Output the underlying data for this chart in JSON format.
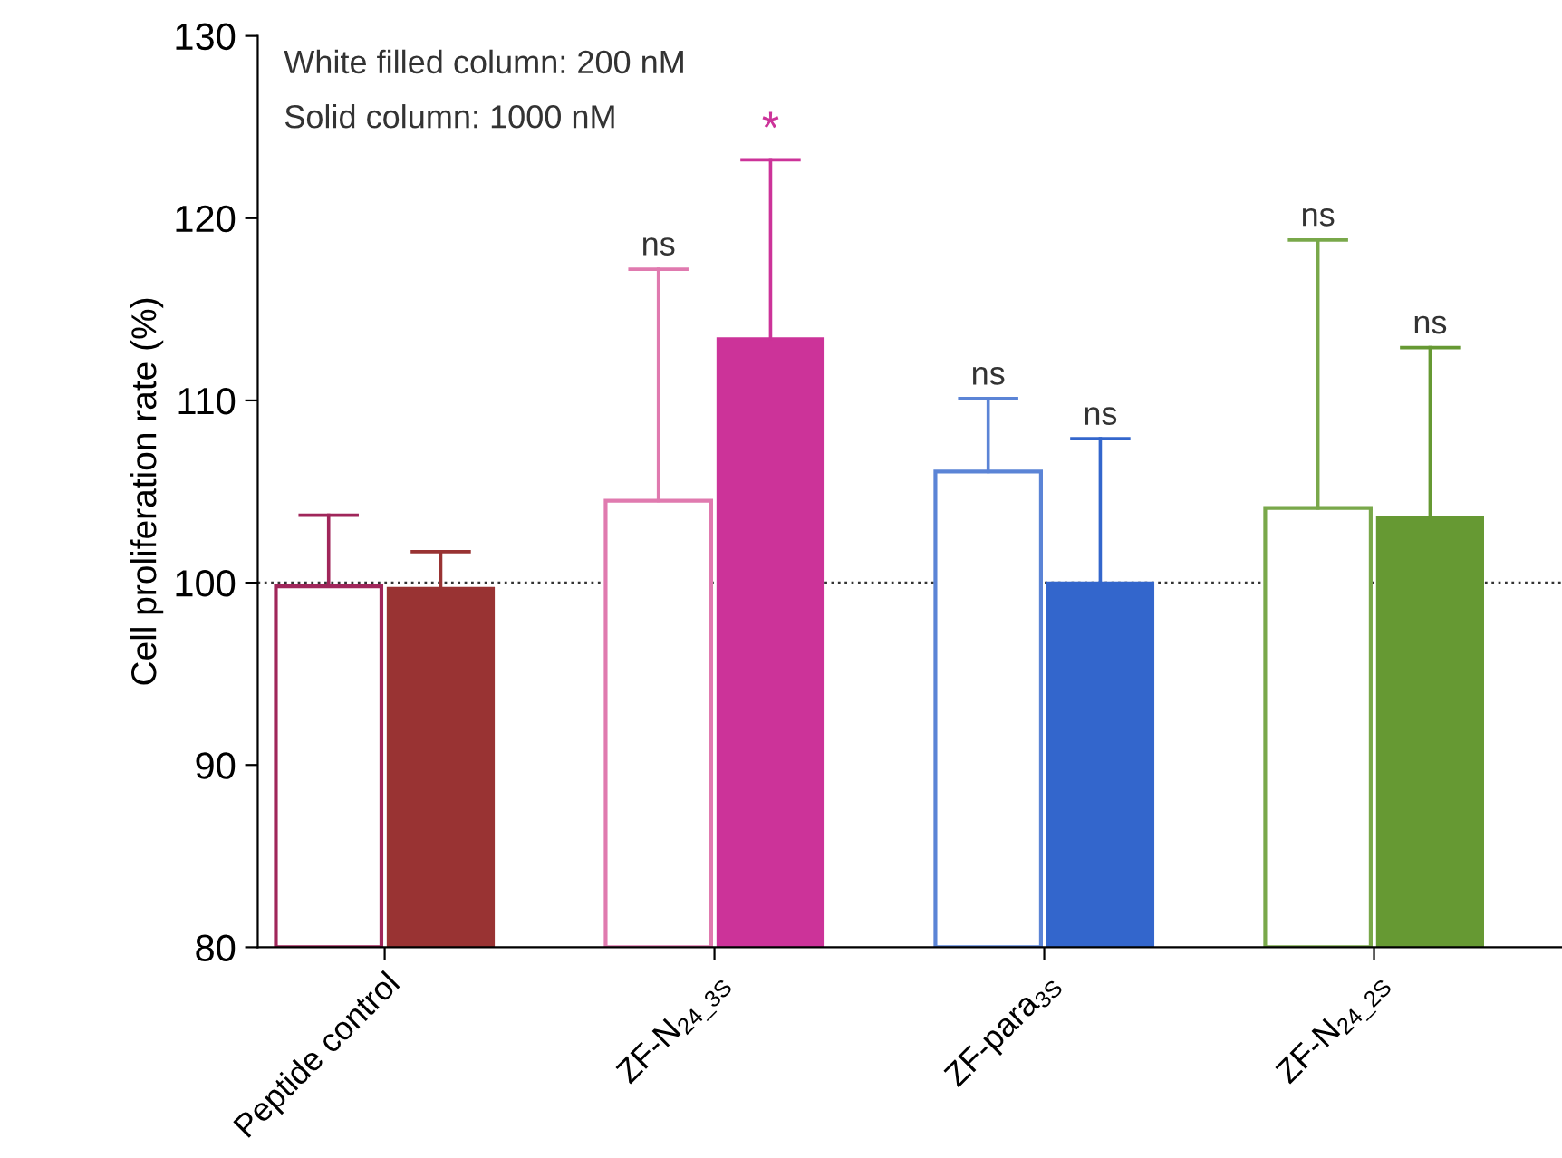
{
  "chart_data": {
    "type": "bar",
    "ylabel": "Cell proliferation rate (%)",
    "categories": [
      "Peptide control",
      "ZF-N$_{24_3S}$",
      "ZF-para$_{3S}$",
      "ZF-N$_{24_2S}$"
    ],
    "series": [
      {
        "colors": [
          "#a0265a",
          "#e07aaf",
          "#5b84d6",
          "#79a84a"
        ],
        "values": [
          99.8,
          104.5,
          106.1,
          104.1
        ],
        "errors": [
          [
            99.8,
            103.7
          ],
          [
            104.5,
            117.2
          ],
          [
            106.1,
            110.1
          ],
          [
            104.1,
            118.8
          ]
        ]
      },
      {
        "colors": [
          "#993333",
          "#cc3399",
          "#3366cc",
          "#669933"
        ],
        "values": [
          99.7,
          113.4,
          100.0,
          103.6
        ],
        "errors": [
          [
            99.7,
            101.7
          ],
          [
            113.4,
            123.2
          ],
          [
            100.0,
            107.9
          ],
          [
            103.6,
            112.9
          ]
        ]
      }
    ],
    "ylim": [
      80,
      130
    ],
    "yticks": [
      80,
      90,
      100,
      110,
      120,
      130
    ],
    "grid": false,
    "legend": false,
    "ref_lines": [
      {
        "axis": "y",
        "value": 100,
        "color": "#333333",
        "line_style": "dotted"
      }
    ],
    "annotations": [
      "White filled column: 200 nM",
      "Solid column: 1000 nM",
      "ns",
      "*",
      "ns",
      "ns",
      "ns",
      "ns"
    ]
  }
}
